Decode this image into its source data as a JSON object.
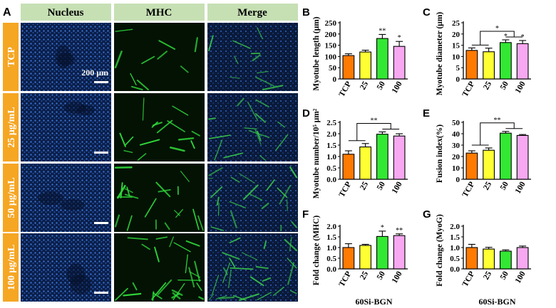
{
  "figure": {
    "panel_A": {
      "panel_letter": "A",
      "column_headers": [
        "Nucleus",
        "MHC",
        "Merge"
      ],
      "row_labels": [
        "TCP",
        "25 μg/mL",
        "50 μg/mL",
        "100 μg/mL"
      ],
      "scale_bar_text": "200 μm",
      "header_bg": "#c6e0b4",
      "row_label_bg": "#f5a623",
      "nucleus_color": "#2f6fd6",
      "mhc_color": "#2fd83a"
    },
    "bar_colors": [
      "#ff7a00",
      "#ffff33",
      "#33e833",
      "#f7a8f0"
    ]
  },
  "chart_data": [
    {
      "panel": "B",
      "type": "bar",
      "categories": [
        "TCP",
        "25",
        "50",
        "100"
      ],
      "values": [
        104,
        120,
        180,
        145
      ],
      "errors": [
        8,
        8,
        18,
        22
      ],
      "significance": [
        "",
        "",
        "**",
        "*"
      ],
      "ylabel": "Myotube length (μm)",
      "xlabel": "",
      "yticks": [
        0,
        50,
        100,
        150,
        200,
        250
      ],
      "ylim": [
        0,
        250
      ],
      "brackets": []
    },
    {
      "panel": "C",
      "type": "bar",
      "categories": [
        "TCP",
        "25",
        "50",
        "100"
      ],
      "values": [
        12.7,
        12.1,
        16.2,
        15.7
      ],
      "errors": [
        1.1,
        1.6,
        1.2,
        1.4
      ],
      "significance": [
        "",
        "",
        "*",
        "*"
      ],
      "ylabel": "Myotube diameter (μm)",
      "xlabel": "",
      "yticks": [
        0,
        5,
        10,
        15,
        20,
        25
      ],
      "ylim": [
        0,
        25
      ],
      "brackets": [
        {
          "from": [
            0,
            1
          ],
          "to": [
            2,
            3
          ],
          "label": "*"
        }
      ]
    },
    {
      "panel": "D",
      "type": "bar",
      "categories": [
        "TCP",
        "25",
        "50",
        "100"
      ],
      "values": [
        1.1,
        1.42,
        1.98,
        1.9
      ],
      "errors": [
        0.15,
        0.15,
        0.1,
        0.1
      ],
      "significance": [
        "",
        "",
        "",
        ""
      ],
      "ylabel": "Myotube  number/10⁵ μm²",
      "xlabel": "",
      "yticks": [
        0.0,
        0.5,
        1.0,
        1.5,
        2.0,
        2.5
      ],
      "ylim": [
        0,
        2.5
      ],
      "brackets": [
        {
          "from": [
            0,
            1
          ],
          "to": [
            2,
            3
          ],
          "label": "**"
        }
      ]
    },
    {
      "panel": "E",
      "type": "bar",
      "categories": [
        "TCP",
        "25",
        "50",
        "100"
      ],
      "values": [
        23,
        25.5,
        40.5,
        38.5
      ],
      "errors": [
        2,
        2,
        1.5,
        0.8
      ],
      "significance": [
        "",
        "",
        "",
        ""
      ],
      "ylabel": "Fusion index(%)",
      "xlabel": "",
      "yticks": [
        0,
        10,
        20,
        30,
        40,
        50
      ],
      "ylim": [
        0,
        50
      ],
      "brackets": [
        {
          "from": [
            0,
            1
          ],
          "to": [
            2,
            3
          ],
          "label": "**"
        }
      ]
    },
    {
      "panel": "F",
      "type": "bar",
      "categories": [
        "TCP",
        "25",
        "50",
        "100"
      ],
      "values": [
        1.0,
        1.1,
        1.52,
        1.56
      ],
      "errors": [
        0.18,
        0.05,
        0.25,
        0.08
      ],
      "significance": [
        "",
        "",
        "*",
        "**"
      ],
      "ylabel": "Fold change (MHC)",
      "xlabel": "60Si-BGN",
      "yticks": [
        0.0,
        0.5,
        1.0,
        1.5,
        2.0
      ],
      "ylim": [
        0,
        2.0
      ],
      "brackets": []
    },
    {
      "panel": "G",
      "type": "bar",
      "categories": [
        "TCP",
        "25",
        "50",
        "100"
      ],
      "values": [
        1.0,
        0.93,
        0.83,
        1.0
      ],
      "errors": [
        0.15,
        0.08,
        0.06,
        0.07
      ],
      "significance": [
        "",
        "",
        "",
        ""
      ],
      "ylabel": "Fold change (MyoG)",
      "xlabel": "60Si-BGN",
      "yticks": [
        0.0,
        0.5,
        1.0,
        1.5,
        2.0
      ],
      "ylim": [
        0,
        2.0
      ],
      "brackets": []
    }
  ]
}
